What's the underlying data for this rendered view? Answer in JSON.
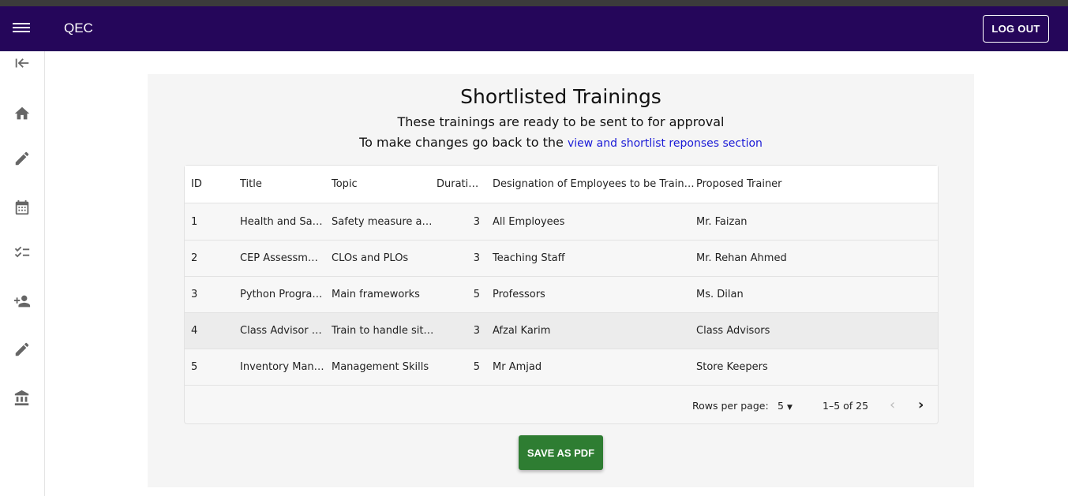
{
  "app": {
    "title": "QEC",
    "logout": "LOG OUT"
  },
  "sidebar": {
    "icons": [
      "collapse-icon",
      "home-icon",
      "edit-icon",
      "calendar-icon",
      "checklist-icon",
      "person-add-icon",
      "edit-icon",
      "institution-icon"
    ]
  },
  "page": {
    "title": "Shortlisted Trainings",
    "subtitle": "These trainings are ready to be sent to for approval",
    "note": "To make changes go back to the",
    "link": "view and shortlist reponses section"
  },
  "table": {
    "columns": [
      "ID",
      "Title",
      "Topic",
      "Durati…",
      "Designation of Employees to be Train…",
      "Proposed Trainer"
    ],
    "rows": [
      [
        "1",
        "Health and Sa…",
        "Safety measure a…",
        "3",
        "All Employees",
        "Mr. Faizan"
      ],
      [
        "2",
        "CEP Assessm…",
        "CLOs and PLOs",
        "3",
        "Teaching Staff",
        "Mr. Rehan Ahmed"
      ],
      [
        "3",
        "Python Progra…",
        "Main frameworks",
        "5",
        "Professors",
        "Ms. Dilan"
      ],
      [
        "4",
        "Class Advisor …",
        "Train to handle sit…",
        "3",
        "Afzal Karim",
        "Class Advisors"
      ],
      [
        "5",
        "Inventory Man…",
        "Management Skills",
        "5",
        "Mr Amjad",
        "Store Keepers"
      ]
    ],
    "rows_per_page_label": "Rows per page:",
    "rows_per_page": "5",
    "range": "1–5 of 25"
  },
  "save": "SAVE AS PDF",
  "colors": {
    "appbar": "#25065a",
    "save": "#2e7d32",
    "link": "#1a1ad6"
  }
}
